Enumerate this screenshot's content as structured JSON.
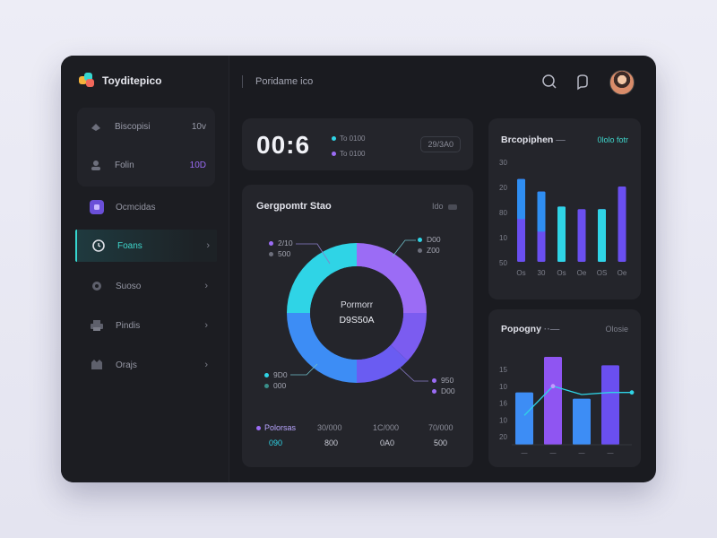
{
  "brand": {
    "name": "Toyditepico"
  },
  "topbar": {
    "title": "Poridame ico"
  },
  "sidebar": {
    "group": [
      {
        "label": "Biscopisi",
        "value": "10v"
      },
      {
        "label": "Folin",
        "value": "10D"
      }
    ],
    "items": [
      {
        "label": "Ocmcidas",
        "icon": "square-app-icon"
      },
      {
        "label": "Foans",
        "icon": "clock-icon",
        "active": true
      },
      {
        "label": "Suoso",
        "icon": "gear-icon"
      },
      {
        "label": "Pindis",
        "icon": "printer-icon"
      },
      {
        "label": "Orajs",
        "icon": "bag-icon"
      }
    ]
  },
  "timer": {
    "value": "00:6",
    "line1": "To 0100",
    "line2": "To 0100",
    "badge": "29/3A0"
  },
  "donut": {
    "title": "Gergpomtr Stao",
    "meta": "Ido",
    "center_title": "Pormorr",
    "center_value": "D9S50A",
    "legend": [
      {
        "a": "2/10",
        "b": "500",
        "color": "#9b6cf5"
      },
      {
        "a": "D00",
        "b": "Z00",
        "color": "#2fd4e6"
      },
      {
        "a": "9D0",
        "b": "000",
        "color": "#2fd4e6"
      },
      {
        "a": "950",
        "b": "D00",
        "color": "#9b6cf5"
      }
    ],
    "summary": [
      {
        "h": "Polorsas",
        "v": "090"
      },
      {
        "h": "30/000",
        "v": "800"
      },
      {
        "h": "1C/000",
        "v": "0A0"
      },
      {
        "h": "70/000",
        "v": "500"
      }
    ]
  },
  "chart_data": [
    {
      "type": "pie",
      "values": [
        25,
        12,
        13,
        25,
        25
      ],
      "colors": [
        "#9b6cf5",
        "#7b5cf0",
        "#6a5cf2",
        "#3d8df5",
        "#2fd4e6"
      ]
    },
    {
      "type": "bar",
      "title": "Brcopiphen",
      "meta": "0lolo fotr",
      "categories": [
        "Os",
        "30",
        "Os",
        "Oe",
        "OS",
        "Oe"
      ],
      "series": [
        {
          "values": [
            33,
            28,
            22,
            21,
            21,
            30
          ]
        }
      ],
      "highlight_top": [
        16,
        16,
        0,
        0,
        0,
        0
      ],
      "ylabels": [
        "30",
        "20",
        "80",
        "10",
        "50"
      ],
      "ylim": [
        0,
        40
      ]
    },
    {
      "type": "bar",
      "title": "Popogny",
      "meta": "Olosie",
      "categories": [
        "—",
        "—",
        "—",
        "—"
      ],
      "values": [
        25,
        42,
        22,
        38
      ],
      "line": [
        14,
        28,
        24,
        25
      ],
      "ylabels": [
        "15",
        "10",
        "16",
        "10",
        "20"
      ],
      "ylim": [
        0,
        45
      ]
    }
  ]
}
